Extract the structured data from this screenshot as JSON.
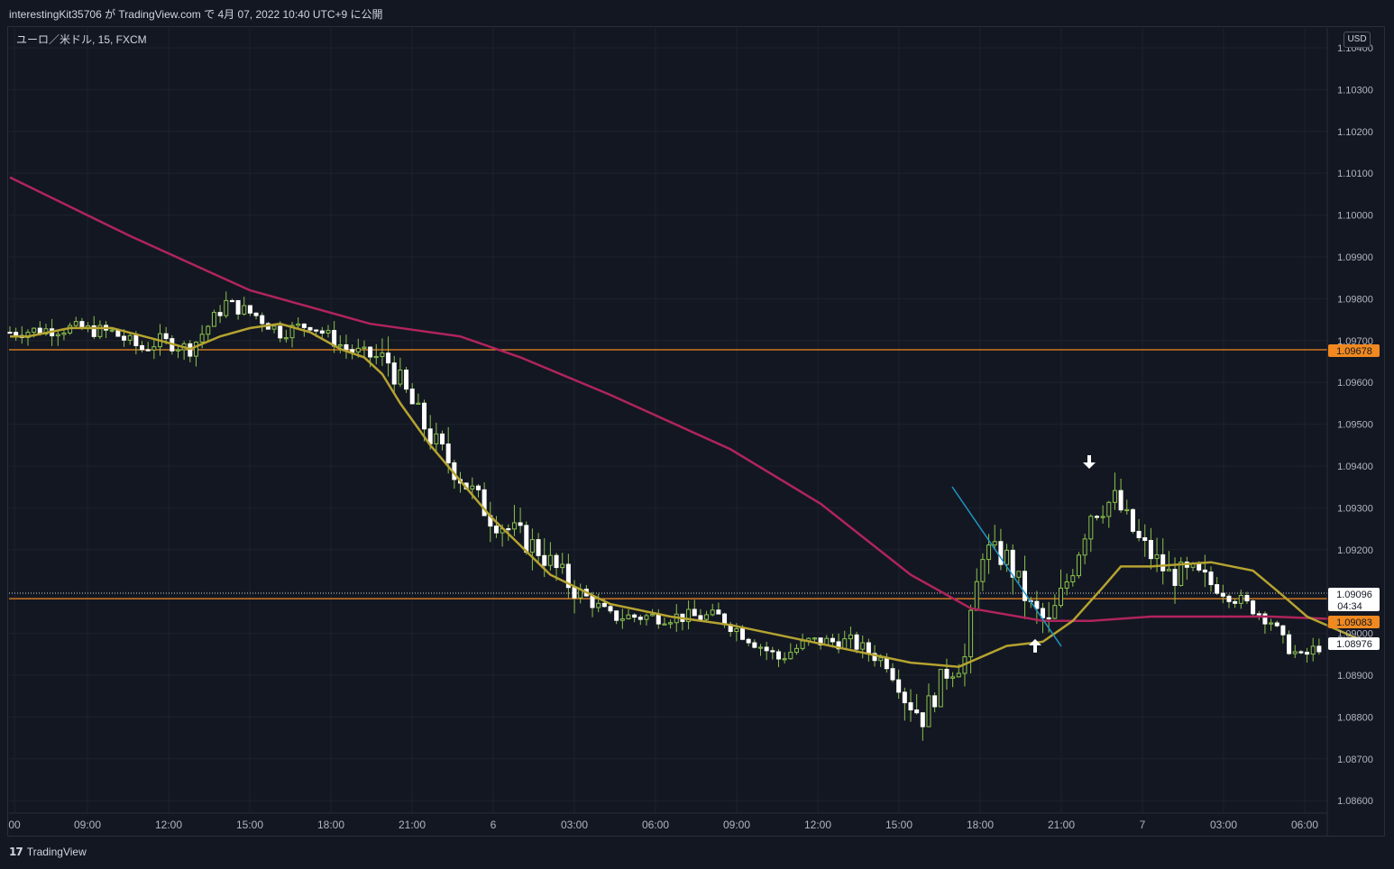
{
  "header": {
    "publish_text": "interestingKit35706 が TradingView.com で 4月 07, 2022 10:40 UTC+9 に公開"
  },
  "chart_header": {
    "symbol_text": "ユーロ／米ドル, 15, FXCM",
    "currency_button": "USD"
  },
  "footer": {
    "brand_text": "TradingView"
  },
  "colors": {
    "background": "#131722",
    "up_candle": "#ffffff",
    "down_candle_wick": "#8bc34a",
    "ma_fast": "#b5a330",
    "ma_slow": "#b0245c",
    "hline": "#f0891f",
    "trendline": "#2196c4"
  },
  "chart_data": {
    "type": "candlestick",
    "instrument": "ユーロ／米ドル",
    "timeframe": "15",
    "source": "FXCM",
    "y_ticks": [
      "1.10400",
      "1.10300",
      "1.10200",
      "1.10100",
      "1.10000",
      "1.09900",
      "1.09800",
      "1.09700",
      "1.09600",
      "1.09500",
      "1.09400",
      "1.09300",
      "1.09200",
      "1.09000",
      "1.08900",
      "1.08800",
      "1.08700",
      "1.08600"
    ],
    "x_ticks": [
      "00",
      "09:00",
      "12:00",
      "15:00",
      "18:00",
      "21:00",
      "6",
      "03:00",
      "06:00",
      "09:00",
      "12:00",
      "15:00",
      "18:00",
      "21:00",
      "7",
      "03:00",
      "06:00"
    ],
    "ylim": [
      1.0855,
      1.1045
    ],
    "price_labels": [
      {
        "value": 1.09678,
        "text": "1.09678",
        "style": "orange"
      },
      {
        "value": 1.09096,
        "text": "1.09096",
        "style": "white",
        "countdown": "04:34"
      },
      {
        "value": 1.09083,
        "text": "1.09083",
        "style": "orange"
      },
      {
        "value": 1.08976,
        "text": "1.08976",
        "style": "white"
      }
    ],
    "horizontal_lines": [
      1.09678,
      1.09083
    ],
    "current_price_line": 1.09096,
    "ma_fast": [
      [
        0,
        1.0971
      ],
      [
        3,
        1.0971
      ],
      [
        10,
        1.0973
      ],
      [
        17,
        1.0973
      ],
      [
        25,
        1.097
      ],
      [
        30,
        1.0968
      ],
      [
        35,
        1.0971
      ],
      [
        40,
        1.0973
      ],
      [
        45,
        1.0974
      ],
      [
        50,
        1.0972
      ],
      [
        55,
        1.0968
      ],
      [
        59,
        1.0966
      ],
      [
        62,
        1.0962
      ],
      [
        65,
        1.0955
      ],
      [
        70,
        1.0945
      ],
      [
        80,
        1.0928
      ],
      [
        90,
        1.0914
      ],
      [
        100,
        1.0907
      ],
      [
        110,
        1.0904
      ],
      [
        120,
        1.0902
      ],
      [
        130,
        1.0899
      ],
      [
        140,
        1.0896
      ],
      [
        150,
        1.0893
      ],
      [
        158,
        1.0892
      ],
      [
        166,
        1.0897
      ],
      [
        172,
        1.0898
      ],
      [
        177,
        1.0903
      ],
      [
        182,
        1.0911
      ],
      [
        185,
        1.0916
      ],
      [
        190,
        1.0916
      ],
      [
        200,
        1.0917
      ],
      [
        207,
        1.0915
      ],
      [
        212,
        1.0909
      ],
      [
        216,
        1.0904
      ],
      [
        224,
        1.0899
      ],
      [
        228,
        1.0898
      ]
    ],
    "ma_slow": [
      [
        0,
        1.1009
      ],
      [
        20,
        1.0995
      ],
      [
        40,
        1.0982
      ],
      [
        60,
        1.0974
      ],
      [
        75,
        1.0971
      ],
      [
        85,
        1.0966
      ],
      [
        100,
        1.0957
      ],
      [
        120,
        1.0944
      ],
      [
        135,
        1.0931
      ],
      [
        150,
        1.0914
      ],
      [
        160,
        1.0906
      ],
      [
        172,
        1.0903
      ],
      [
        180,
        1.0903
      ],
      [
        190,
        1.0904
      ],
      [
        200,
        1.0904
      ],
      [
        210,
        1.0904
      ],
      [
        228,
        1.0903
      ]
    ],
    "trendline": [
      [
        1056,
        540
      ],
      [
        1177,
        717
      ]
    ],
    "arrows": [
      {
        "dir": "down",
        "time": 1208,
        "value": 1.094
      },
      {
        "dir": "up",
        "time": 1148,
        "value": 1.0898
      }
    ]
  }
}
